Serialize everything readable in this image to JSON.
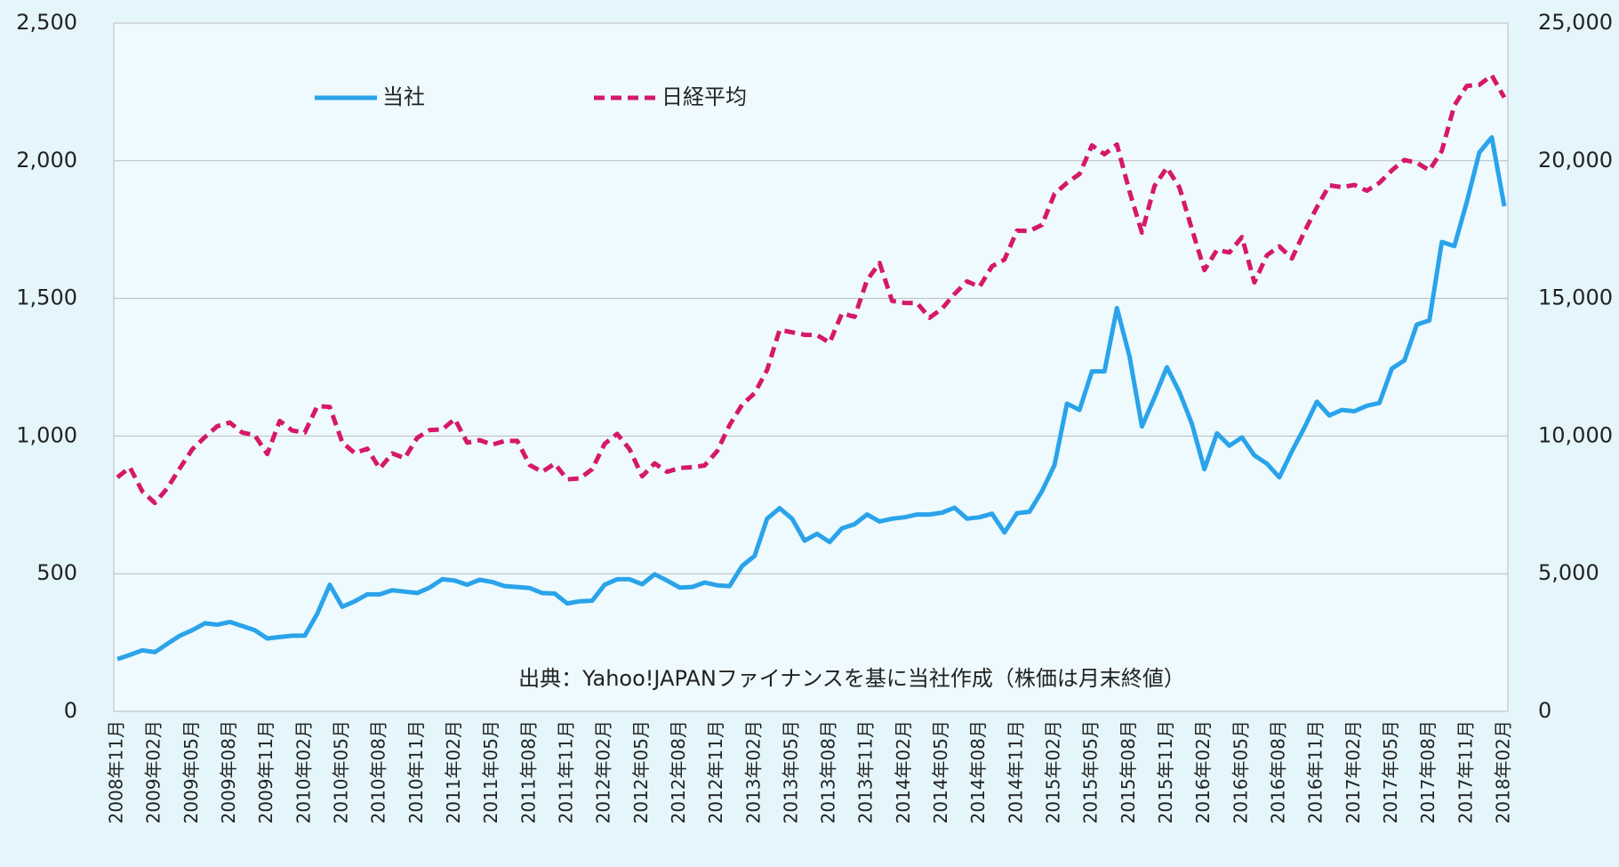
{
  "chart_data": {
    "type": "line",
    "categories": [
      "2008年11月",
      null,
      null,
      "2009年02月",
      null,
      null,
      "2009年05月",
      null,
      null,
      "2009年08月",
      null,
      null,
      "2009年11月",
      null,
      null,
      "2010年02月",
      null,
      null,
      "2010年05月",
      null,
      null,
      "2010年08月",
      null,
      null,
      "2010年11月",
      null,
      null,
      "2011年02月",
      null,
      null,
      "2011年05月",
      null,
      null,
      "2011年08月",
      null,
      null,
      "2011年11月",
      null,
      null,
      "2012年02月",
      null,
      null,
      "2012年05月",
      null,
      null,
      "2012年08月",
      null,
      null,
      "2012年11月",
      null,
      null,
      "2013年02月",
      null,
      null,
      "2013年05月",
      null,
      null,
      "2013年08月",
      null,
      null,
      "2013年11月",
      null,
      null,
      "2014年02月",
      null,
      null,
      "2014年05月",
      null,
      null,
      "2014年08月",
      null,
      null,
      "2014年11月",
      null,
      null,
      "2015年02月",
      null,
      null,
      "2015年05月",
      null,
      null,
      "2015年08月",
      null,
      null,
      "2015年11月",
      null,
      null,
      "2016年02月",
      null,
      null,
      "2016年05月",
      null,
      null,
      "2016年08月",
      null,
      null,
      "2016年11月",
      null,
      null,
      "2017年02月",
      null,
      null,
      "2017年05月",
      null,
      null,
      "2017年08月",
      null,
      null,
      "2017年11月",
      null,
      null,
      "2018年02月"
    ],
    "series": [
      {
        "name": "当社",
        "color": "#2aa3ea",
        "axis": "y",
        "dashed": false,
        "values": [
          190,
          205,
          222,
          215,
          245,
          275,
          295,
          320,
          315,
          325,
          310,
          295,
          265,
          270,
          275,
          275,
          355,
          460,
          380,
          400,
          425,
          425,
          440,
          435,
          430,
          450,
          480,
          475,
          460,
          478,
          470,
          455,
          452,
          448,
          430,
          428,
          392,
          400,
          402,
          460,
          480,
          480,
          462,
          498,
          475,
          450,
          452,
          468,
          458,
          455,
          528,
          565,
          700,
          738,
          700,
          620,
          645,
          615,
          665,
          680,
          715,
          690,
          700,
          705,
          715,
          715,
          722,
          740,
          700,
          705,
          718,
          650,
          720,
          725,
          800,
          895,
          1118,
          1095,
          1235,
          1235,
          1465,
          1290,
          1035,
          1140,
          1250,
          1160,
          1045,
          880,
          1010,
          965,
          995,
          930,
          900,
          850,
          945,
          1030,
          1125,
          1075,
          1095,
          1090,
          1110,
          1120,
          1245,
          1275,
          1405,
          1420,
          1705,
          1690,
          1850,
          2030,
          2085,
          1835
        ]
      },
      {
        "name": "日経平均",
        "color": "#d6186a",
        "axis": "y2",
        "dashed": true,
        "values": [
          8500,
          8860,
          7990,
          7570,
          8110,
          8830,
          9520,
          9960,
          10360,
          10490,
          10130,
          10030,
          9350,
          10550,
          10200,
          10130,
          11090,
          11060,
          9770,
          9380,
          9540,
          8820,
          9370,
          9200,
          9940,
          10220,
          10240,
          10620,
          9760,
          9850,
          9690,
          9820,
          9830,
          8950,
          8700,
          9000,
          8430,
          8460,
          8800,
          9720,
          10080,
          9520,
          8540,
          9010,
          8700,
          8840,
          8870,
          8930,
          9450,
          10400,
          11140,
          11560,
          12400,
          13860,
          13770,
          13680,
          13670,
          13390,
          14460,
          14330,
          15660,
          16290,
          14910,
          14840,
          14830,
          14300,
          14630,
          15160,
          15620,
          15420,
          16170,
          16410,
          17460,
          17450,
          17670,
          18800,
          19200,
          19520,
          20560,
          20240,
          20590,
          18890,
          17390,
          19080,
          19750,
          19030,
          17520,
          16030,
          16760,
          16670,
          17230,
          15580,
          16570,
          16890,
          16450,
          17420,
          18310,
          19110,
          19040,
          19120,
          18910,
          19200,
          19650,
          20030,
          19930,
          19650,
          20360,
          22010,
          22720,
          22760,
          23100,
          22300
        ]
      }
    ],
    "ylim": [
      0,
      2500
    ],
    "yticks": [
      0,
      500,
      {
        "value": 1000,
        "label": "1,000"
      },
      {
        "value": 1500,
        "label": "1,500"
      },
      {
        "value": 2000,
        "label": "2,000"
      },
      {
        "value": 2500,
        "label": "2,500"
      }
    ],
    "y2lim": [
      0,
      25000
    ],
    "y2ticks": [
      0,
      {
        "value": 5000,
        "label": "5,000"
      },
      {
        "value": 10000,
        "label": "10,000"
      },
      {
        "value": 15000,
        "label": "15,000"
      },
      {
        "value": 20000,
        "label": "20,000"
      },
      {
        "value": 25000,
        "label": "25,000"
      }
    ],
    "grid": true,
    "annotation": "出典：Yahoo!JAPANファイナンスを基に当社作成（株価は月末終値）"
  }
}
